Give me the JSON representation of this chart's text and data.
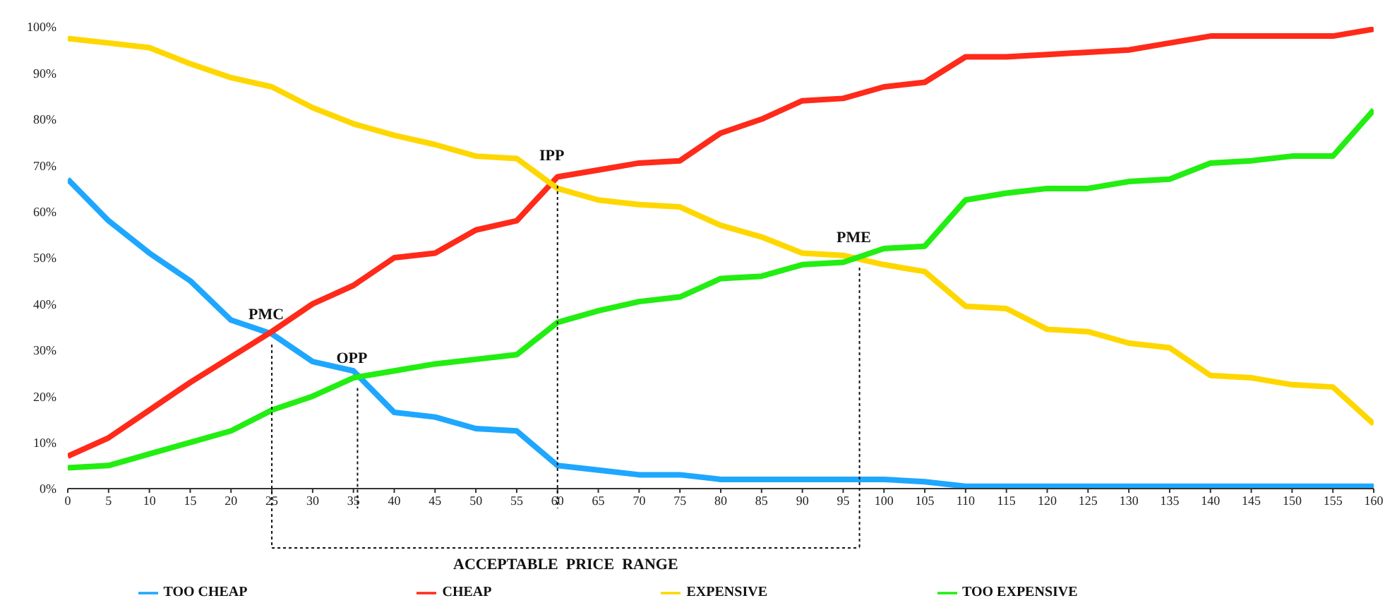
{
  "chart_data": {
    "type": "line",
    "x": [
      0,
      5,
      10,
      15,
      20,
      25,
      30,
      35,
      40,
      45,
      50,
      55,
      60,
      65,
      70,
      75,
      80,
      85,
      90,
      95,
      100,
      105,
      110,
      115,
      120,
      125,
      130,
      135,
      140,
      145,
      150,
      155,
      160
    ],
    "series": [
      {
        "name": "TOO CHEAP",
        "color": "#1ea7ff",
        "values": [
          67,
          58,
          51,
          45,
          36.5,
          33.5,
          27.5,
          25.5,
          16.5,
          15.5,
          13,
          12.5,
          5,
          4,
          3,
          3,
          2,
          2,
          2,
          2,
          2,
          1.5,
          0.5,
          0.5,
          0.5,
          0.5,
          0.5,
          0.5,
          0.5,
          0.5,
          0.5,
          0.5,
          0.5
        ]
      },
      {
        "name": "CHEAP",
        "color": "#ff2a1a",
        "values": [
          7,
          11,
          17,
          23,
          28.5,
          34,
          40,
          44,
          50,
          51,
          56,
          58,
          67.5,
          69,
          70.5,
          71,
          77,
          80,
          84,
          84.5,
          87,
          88,
          93.5,
          93.5,
          94,
          94.5,
          95,
          96.5,
          98,
          98,
          98,
          98,
          99.5
        ]
      },
      {
        "name": "EXPENSIVE",
        "color": "#ffd700",
        "values": [
          97.5,
          96.5,
          95.5,
          92,
          89,
          87,
          82.5,
          79,
          76.5,
          74.5,
          72,
          71.5,
          65,
          62.5,
          61.5,
          61,
          57,
          54.5,
          51,
          50.5,
          48.5,
          47,
          39.5,
          39,
          34.5,
          34,
          31.5,
          30.5,
          24.5,
          24,
          22.5,
          22,
          14
        ]
      },
      {
        "name": "TOO EXPENSIVE",
        "color": "#22ee11",
        "values": [
          4.5,
          5,
          7.5,
          10,
          12.5,
          17,
          20,
          24,
          25.5,
          27,
          28,
          29,
          36,
          38.5,
          40.5,
          41.5,
          45.5,
          46,
          48.5,
          49,
          52,
          52.5,
          62.5,
          64,
          65,
          65,
          66.5,
          67,
          70.5,
          71,
          72,
          72,
          82
        ]
      }
    ],
    "xlim": [
      0,
      160
    ],
    "xticks": [
      0,
      5,
      10,
      15,
      20,
      25,
      30,
      35,
      40,
      45,
      50,
      55,
      60,
      65,
      70,
      75,
      80,
      85,
      90,
      95,
      100,
      105,
      110,
      115,
      120,
      125,
      130,
      135,
      140,
      145,
      150,
      155,
      160
    ],
    "ylim": [
      0,
      100
    ],
    "yticks": [
      {
        "value": 0,
        "label": "0%"
      },
      {
        "value": 10,
        "label": "10%"
      },
      {
        "value": 20,
        "label": "20%"
      },
      {
        "value": 30,
        "label": "30%"
      },
      {
        "value": 40,
        "label": "40%"
      },
      {
        "value": 50,
        "label": "50%"
      },
      {
        "value": 60,
        "label": "60%"
      },
      {
        "value": 70,
        "label": "70%"
      },
      {
        "value": 80,
        "label": "80%"
      },
      {
        "value": 90,
        "label": "90%"
      },
      {
        "value": 100,
        "label": "100%"
      }
    ],
    "annotations": [
      {
        "text": "PMC",
        "x": 25,
        "y": 34
      },
      {
        "text": "OPP",
        "x": 35.5,
        "y": 25
      },
      {
        "text": "IPP",
        "x": 60,
        "y": 67
      },
      {
        "text": "PME",
        "x": 97,
        "y": 50
      },
      "ACCEPTABLE  PRICE  RANGE"
    ],
    "ref_lines": [
      {
        "axis": "x",
        "value": 25,
        "line_style": "dotted",
        "color": "#111111"
      },
      {
        "axis": "x",
        "value": 35.5,
        "line_style": "dotted",
        "color": "#111111"
      },
      {
        "axis": "x",
        "value": 60,
        "line_style": "dotted",
        "color": "#111111"
      },
      {
        "axis": "x",
        "value": 97,
        "line_style": "dotted",
        "color": "#111111"
      }
    ],
    "grid": false,
    "legend": "bottom",
    "marker": "none",
    "line_style": "solid"
  }
}
